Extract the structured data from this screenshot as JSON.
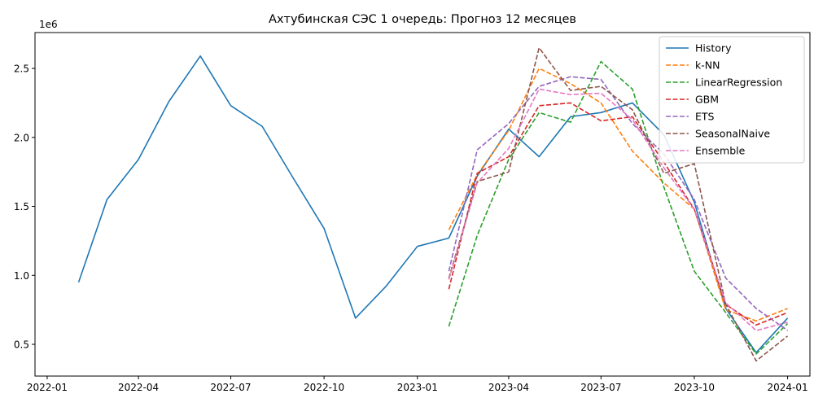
{
  "chart_data": {
    "type": "line",
    "title": "Ахтубинская СЭС 1 очередь: Прогноз 12 месяцев",
    "xlabel": "",
    "ylabel": "",
    "y_scale_label": "1e6",
    "y_multiplier": 1000000,
    "xlim": [
      "2021-12-20",
      "2024-01-23"
    ],
    "ylim": [
      0.27,
      2.76
    ],
    "x_ticks": [
      {
        "date": "2022-01-01",
        "label": "2022-01"
      },
      {
        "date": "2022-04-01",
        "label": "2022-04"
      },
      {
        "date": "2022-07-01",
        "label": "2022-07"
      },
      {
        "date": "2022-10-01",
        "label": "2022-10"
      },
      {
        "date": "2023-01-01",
        "label": "2023-01"
      },
      {
        "date": "2023-04-01",
        "label": "2023-04"
      },
      {
        "date": "2023-07-01",
        "label": "2023-07"
      },
      {
        "date": "2023-10-01",
        "label": "2023-10"
      },
      {
        "date": "2024-01-01",
        "label": "2024-01"
      }
    ],
    "y_ticks": [
      {
        "value": 0.5,
        "label": "0.5"
      },
      {
        "value": 1.0,
        "label": "1.0"
      },
      {
        "value": 1.5,
        "label": "1.5"
      },
      {
        "value": 2.0,
        "label": "2.0"
      },
      {
        "value": 2.5,
        "label": "2.5"
      }
    ],
    "grid": false,
    "legend_position": "top-right",
    "series": [
      {
        "name": "History",
        "color": "#1f77b4",
        "dashed": false,
        "x": [
          "2022-02-01",
          "2022-03-01",
          "2022-04-01",
          "2022-05-01",
          "2022-06-01",
          "2022-07-01",
          "2022-08-01",
          "2022-09-01",
          "2022-10-01",
          "2022-11-01",
          "2022-12-01",
          "2023-01-01",
          "2023-02-01",
          "2023-03-01",
          "2023-04-01",
          "2023-05-01",
          "2023-06-01",
          "2023-07-01",
          "2023-08-01",
          "2023-09-01",
          "2023-10-01",
          "2023-11-01",
          "2023-12-01",
          "2024-01-01"
        ],
        "y": [
          0.95,
          1.55,
          1.84,
          2.26,
          2.59,
          2.23,
          2.08,
          1.7,
          1.34,
          0.69,
          0.92,
          1.21,
          1.27,
          1.72,
          2.06,
          1.86,
          2.15,
          2.18,
          2.25,
          2.02,
          1.53,
          0.76,
          0.44,
          0.69
        ]
      },
      {
        "name": "k-NN",
        "color": "#ff7f0e",
        "dashed": true,
        "x": [
          "2023-02-01",
          "2023-03-01",
          "2023-04-01",
          "2023-05-01",
          "2023-06-01",
          "2023-07-01",
          "2023-08-01",
          "2023-09-01",
          "2023-10-01",
          "2023-11-01",
          "2023-12-01",
          "2024-01-01"
        ],
        "y": [
          1.33,
          1.73,
          2.05,
          2.5,
          2.39,
          2.25,
          1.9,
          1.67,
          1.48,
          0.75,
          0.67,
          0.76
        ]
      },
      {
        "name": "LinearRegression",
        "color": "#2ca02c",
        "dashed": true,
        "x": [
          "2023-02-01",
          "2023-03-01",
          "2023-04-01",
          "2023-05-01",
          "2023-06-01",
          "2023-07-01",
          "2023-08-01",
          "2023-09-01",
          "2023-10-01",
          "2023-11-01",
          "2023-12-01",
          "2024-01-01"
        ],
        "y": [
          0.63,
          1.29,
          1.84,
          2.18,
          2.11,
          2.55,
          2.35,
          1.64,
          1.03,
          0.73,
          0.43,
          0.65
        ]
      },
      {
        "name": "GBM",
        "color": "#d62728",
        "dashed": true,
        "x": [
          "2023-02-01",
          "2023-03-01",
          "2023-04-01",
          "2023-05-01",
          "2023-06-01",
          "2023-07-01",
          "2023-08-01",
          "2023-09-01",
          "2023-10-01",
          "2023-11-01",
          "2023-12-01",
          "2024-01-01"
        ],
        "y": [
          0.9,
          1.74,
          1.86,
          2.23,
          2.25,
          2.12,
          2.15,
          1.82,
          1.48,
          0.79,
          0.64,
          0.73
        ]
      },
      {
        "name": "ETS",
        "color": "#9467bd",
        "dashed": true,
        "x": [
          "2023-02-01",
          "2023-03-01",
          "2023-04-01",
          "2023-05-01",
          "2023-06-01",
          "2023-07-01",
          "2023-08-01",
          "2023-09-01",
          "2023-10-01",
          "2023-11-01",
          "2023-12-01",
          "2024-01-01"
        ],
        "y": [
          1.03,
          1.91,
          2.1,
          2.37,
          2.44,
          2.42,
          2.1,
          1.88,
          1.55,
          0.98,
          0.76,
          0.6
        ]
      },
      {
        "name": "SeasonalNaive",
        "color": "#8c564b",
        "dashed": true,
        "x": [
          "2023-02-01",
          "2023-03-01",
          "2023-04-01",
          "2023-05-01",
          "2023-06-01",
          "2023-07-01",
          "2023-08-01",
          "2023-09-01",
          "2023-10-01",
          "2023-11-01",
          "2023-12-01",
          "2024-01-01"
        ],
        "y": [
          0.98,
          1.68,
          1.75,
          2.65,
          2.34,
          2.37,
          2.2,
          1.74,
          1.81,
          0.79,
          0.38,
          0.56
        ]
      },
      {
        "name": "Ensemble",
        "color": "#e377c2",
        "dashed": true,
        "x": [
          "2023-02-01",
          "2023-03-01",
          "2023-04-01",
          "2023-05-01",
          "2023-06-01",
          "2023-07-01",
          "2023-08-01",
          "2023-09-01",
          "2023-10-01",
          "2023-11-01",
          "2023-12-01",
          "2024-01-01"
        ],
        "y": [
          0.97,
          1.67,
          1.92,
          2.35,
          2.31,
          2.32,
          2.13,
          1.78,
          1.48,
          0.8,
          0.6,
          0.66
        ]
      }
    ]
  }
}
